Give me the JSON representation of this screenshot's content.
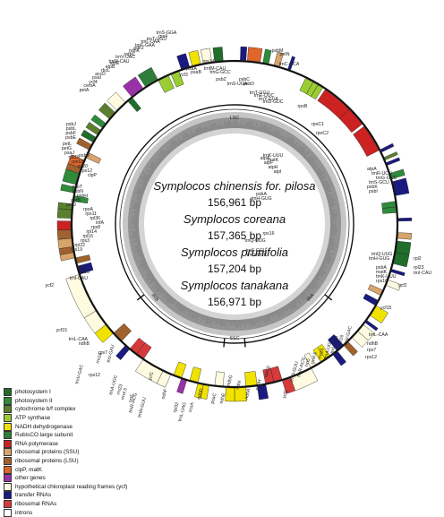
{
  "center": {
    "species": [
      {
        "name": "Symplocos chinensis for. pilosa",
        "size": "156,961 bp"
      },
      {
        "name": "Symplocos coreana",
        "size": "157,365 bp"
      },
      {
        "name": "Symplocos prunifolia",
        "size": "157,204 bp"
      },
      {
        "name": "Symplocos tanakana",
        "size": "156,971 bp"
      }
    ],
    "regions": {
      "lsc": "LSC",
      "ira": "IRA",
      "ssc": "SSC",
      "irb": "IRB"
    }
  },
  "legend": [
    {
      "label": "photosystem I",
      "color": "#1f6e2a"
    },
    {
      "label": "photosystem II",
      "color": "#2e8b3a"
    },
    {
      "label": "cytochrome b/f complex",
      "color": "#5b7f2e"
    },
    {
      "label": "ATP synthase",
      "color": "#9acd32"
    },
    {
      "label": "NADH dehydrogenase",
      "color": "#f2e200"
    },
    {
      "label": "RubisCO large subunit",
      "color": "#2f7d3a"
    },
    {
      "label": "RNA polymerase",
      "color": "#cc2222"
    },
    {
      "label": "ribosomal proteins (SSU)",
      "color": "#d9a46a"
    },
    {
      "label": "ribosomal proteins (LSU)",
      "color": "#a0622d"
    },
    {
      "label": "clpP, matK",
      "color": "#e0662a"
    },
    {
      "label": "other genes",
      "color": "#9932a8"
    },
    {
      "label": "hypothetical chloroplast reading frames (ycf)",
      "color": "#fffbe0"
    },
    {
      "label": "transfer RNAs",
      "color": "#1a1a80"
    },
    {
      "label": "ribosomal RNAs",
      "color": "#d63a3a"
    },
    {
      "label": "introns",
      "color": "#ffffff"
    }
  ],
  "genes": {
    "top": [
      "trnK-UUU",
      "matK",
      "psbA",
      "trnH-GUG",
      "rps16",
      "trnQ-UUG",
      "trnS-GCU",
      "trnG-UCC",
      "atpA",
      "atpF",
      "atpH",
      "atpI",
      "rpoC2",
      "rpoC1",
      "rpoB",
      "trnC-GCA",
      "petN",
      "psbM",
      "trnD-GUC",
      "trnY-GUA",
      "trnE-UUC",
      "trnT-GGU",
      "psbD",
      "psbC",
      "trnS-UGA",
      "psbZ",
      "trnG-GCC",
      "trnfM-CAU",
      "rps14",
      "psaB",
      "psaA",
      "ycf3",
      "trnS-GGA",
      "rps4",
      "trnT-UGU",
      "trnL-UAA",
      "trnF-GAA",
      "ndhJ",
      "ndhK",
      "ndhC",
      "trnV-UAC",
      "trnM-CAU",
      "atpE",
      "atpB",
      "rbcL",
      "accD",
      "psaI",
      "ycf4",
      "cemA",
      "petA"
    ],
    "left": [
      "psbJ",
      "psbL",
      "psbF",
      "psbE",
      "petL",
      "petG",
      "psaJ",
      "rpl33",
      "rps18",
      "rpl20",
      "rps12",
      "clpP",
      "psbB",
      "psbT",
      "psbN",
      "psbH",
      "petB",
      "petD",
      "rpoA",
      "rps11",
      "rpl36",
      "infA",
      "rps8",
      "rpl14",
      "rpl16",
      "rps3",
      "rpl22",
      "rps19",
      "rpl2",
      "rpl23",
      "trnI-CAU",
      "ycf2",
      "ycf15",
      "trnL-CAA",
      "ndhB",
      "rps7",
      "rps12"
    ],
    "right": [
      "trnH-GUG",
      "psbA",
      "matK",
      "trnK-UUU",
      "rps16",
      "trnQ-UUG",
      "psbI",
      "psbK",
      "trnS-GCU",
      "trnG-GCC",
      "trnR-UCU",
      "atpA",
      "rpl2",
      "rpl23",
      "trnI-CAU",
      "ycf2",
      "ycf15",
      "trnL-CAA",
      "ndhB",
      "rps7",
      "rps12"
    ],
    "bottom": [
      "trnV-GAC",
      "rrn16",
      "trnI-GAU",
      "trnA-UGC",
      "rrn23",
      "rrn4.5",
      "rrn5",
      "trnR-ACG",
      "trnN-GUU",
      "ycf1",
      "ndhF",
      "rpl32",
      "trnL-UAG",
      "ccsA",
      "ndhD",
      "psaC",
      "ndhE",
      "ndhG",
      "ndhI",
      "ndhA",
      "ndhH",
      "rps15",
      "ycf1",
      "trnN-GUU",
      "trnR-ACG",
      "rrn5",
      "rrn4.5",
      "rrn23",
      "trnA-UGC",
      "trnI-GAU",
      "rrn16",
      "trnV-GAC"
    ]
  }
}
